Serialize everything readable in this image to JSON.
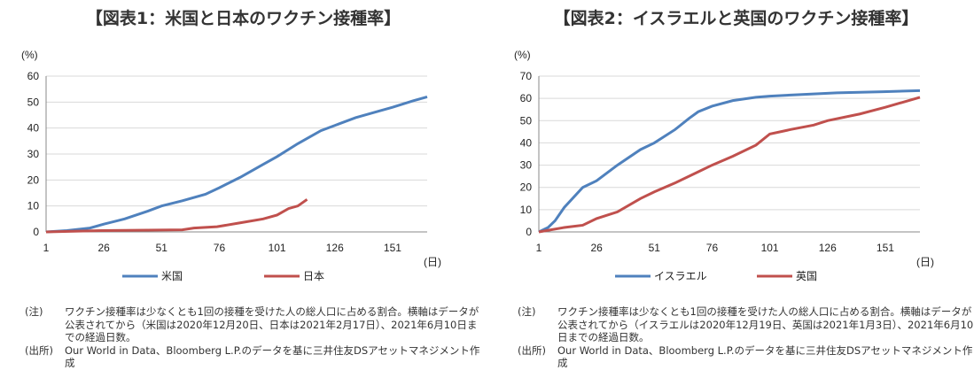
{
  "chart_data": [
    {
      "type": "line",
      "title": "【図表1：米国と日本のワクチン接種率】",
      "ylabel": "(%)",
      "xlabel": "(日)",
      "ylim": [
        0,
        60
      ],
      "xlim": [
        1,
        166
      ],
      "yticks": [
        0,
        10,
        20,
        30,
        40,
        50,
        60
      ],
      "xticks": [
        1,
        26,
        51,
        76,
        101,
        126,
        151
      ],
      "legend": "bottom",
      "grid": "horizontal",
      "series": [
        {
          "name": "米国",
          "color": "#4f81bd",
          "x": [
            1,
            10,
            20,
            26,
            35,
            45,
            51,
            60,
            70,
            76,
            85,
            95,
            101,
            110,
            120,
            126,
            135,
            145,
            151,
            160,
            166
          ],
          "y": [
            0,
            0.5,
            1.5,
            3,
            5,
            8,
            10,
            12,
            14.5,
            17,
            21,
            26,
            29,
            34,
            39,
            41,
            44,
            46.5,
            48,
            50.5,
            52
          ]
        },
        {
          "name": "日本",
          "color": "#c0504d",
          "x": [
            1,
            25,
            60,
            65,
            75,
            85,
            95,
            101,
            106,
            110,
            114
          ],
          "y": [
            0,
            0.5,
            0.8,
            1.5,
            2,
            3.5,
            5,
            6.5,
            9,
            10,
            12.5
          ]
        }
      ],
      "notes": {
        "note_label": "(注)",
        "note_text": "ワクチン接種率は少なくとも1回の接種を受けた人の総人口に占める割合。横軸はデータが公表されてから（米国は2020年12月20日、日本は2021年2月17日）、2021年6月10日までの経過日数。",
        "source_label": "(出所)",
        "source_text": "Our World in Data、Bloomberg L.P.のデータを基に三井住友DSアセットマネジメント作成"
      }
    },
    {
      "type": "line",
      "title": "【図表2：イスラエルと英国のワクチン接種率】",
      "ylabel": "(%)",
      "xlabel": "(日)",
      "ylim": [
        0,
        70
      ],
      "xlim": [
        1,
        166
      ],
      "yticks": [
        0,
        10,
        20,
        30,
        40,
        50,
        60,
        70
      ],
      "xticks": [
        1,
        26,
        51,
        76,
        101,
        126,
        151
      ],
      "legend": "bottom",
      "grid": "horizontal",
      "series": [
        {
          "name": "イスラエル",
          "color": "#4f81bd",
          "x": [
            1,
            5,
            8,
            12,
            20,
            26,
            35,
            45,
            51,
            60,
            66,
            70,
            76,
            85,
            95,
            101,
            110,
            120,
            130,
            150,
            166
          ],
          "y": [
            0,
            2,
            5,
            11,
            20,
            23,
            30,
            37,
            40,
            46,
            51,
            54,
            56.5,
            59,
            60.5,
            61,
            61.5,
            62,
            62.5,
            63,
            63.5
          ]
        },
        {
          "name": "英国",
          "color": "#c0504d",
          "x": [
            1,
            12,
            20,
            26,
            35,
            45,
            51,
            60,
            70,
            76,
            85,
            95,
            101,
            110,
            120,
            126,
            140,
            151,
            166
          ],
          "y": [
            0,
            2,
            3,
            6,
            9,
            15,
            18,
            22,
            27,
            30,
            34,
            39,
            44,
            46,
            48,
            50,
            53,
            56,
            60.5
          ]
        }
      ],
      "notes": {
        "note_label": "(注)",
        "note_text": "ワクチン接種率は少なくとも1回の接種を受けた人の総人口に占める割合。横軸はデータが公表されてから（イスラエルは2020年12月19日、英国は2021年1月3日）、2021年6月10日までの経過日数。",
        "source_label": "(出所)",
        "source_text": "Our World in Data、Bloomberg L.P.のデータを基に三井住友DSアセットマネジメント作成"
      }
    }
  ]
}
